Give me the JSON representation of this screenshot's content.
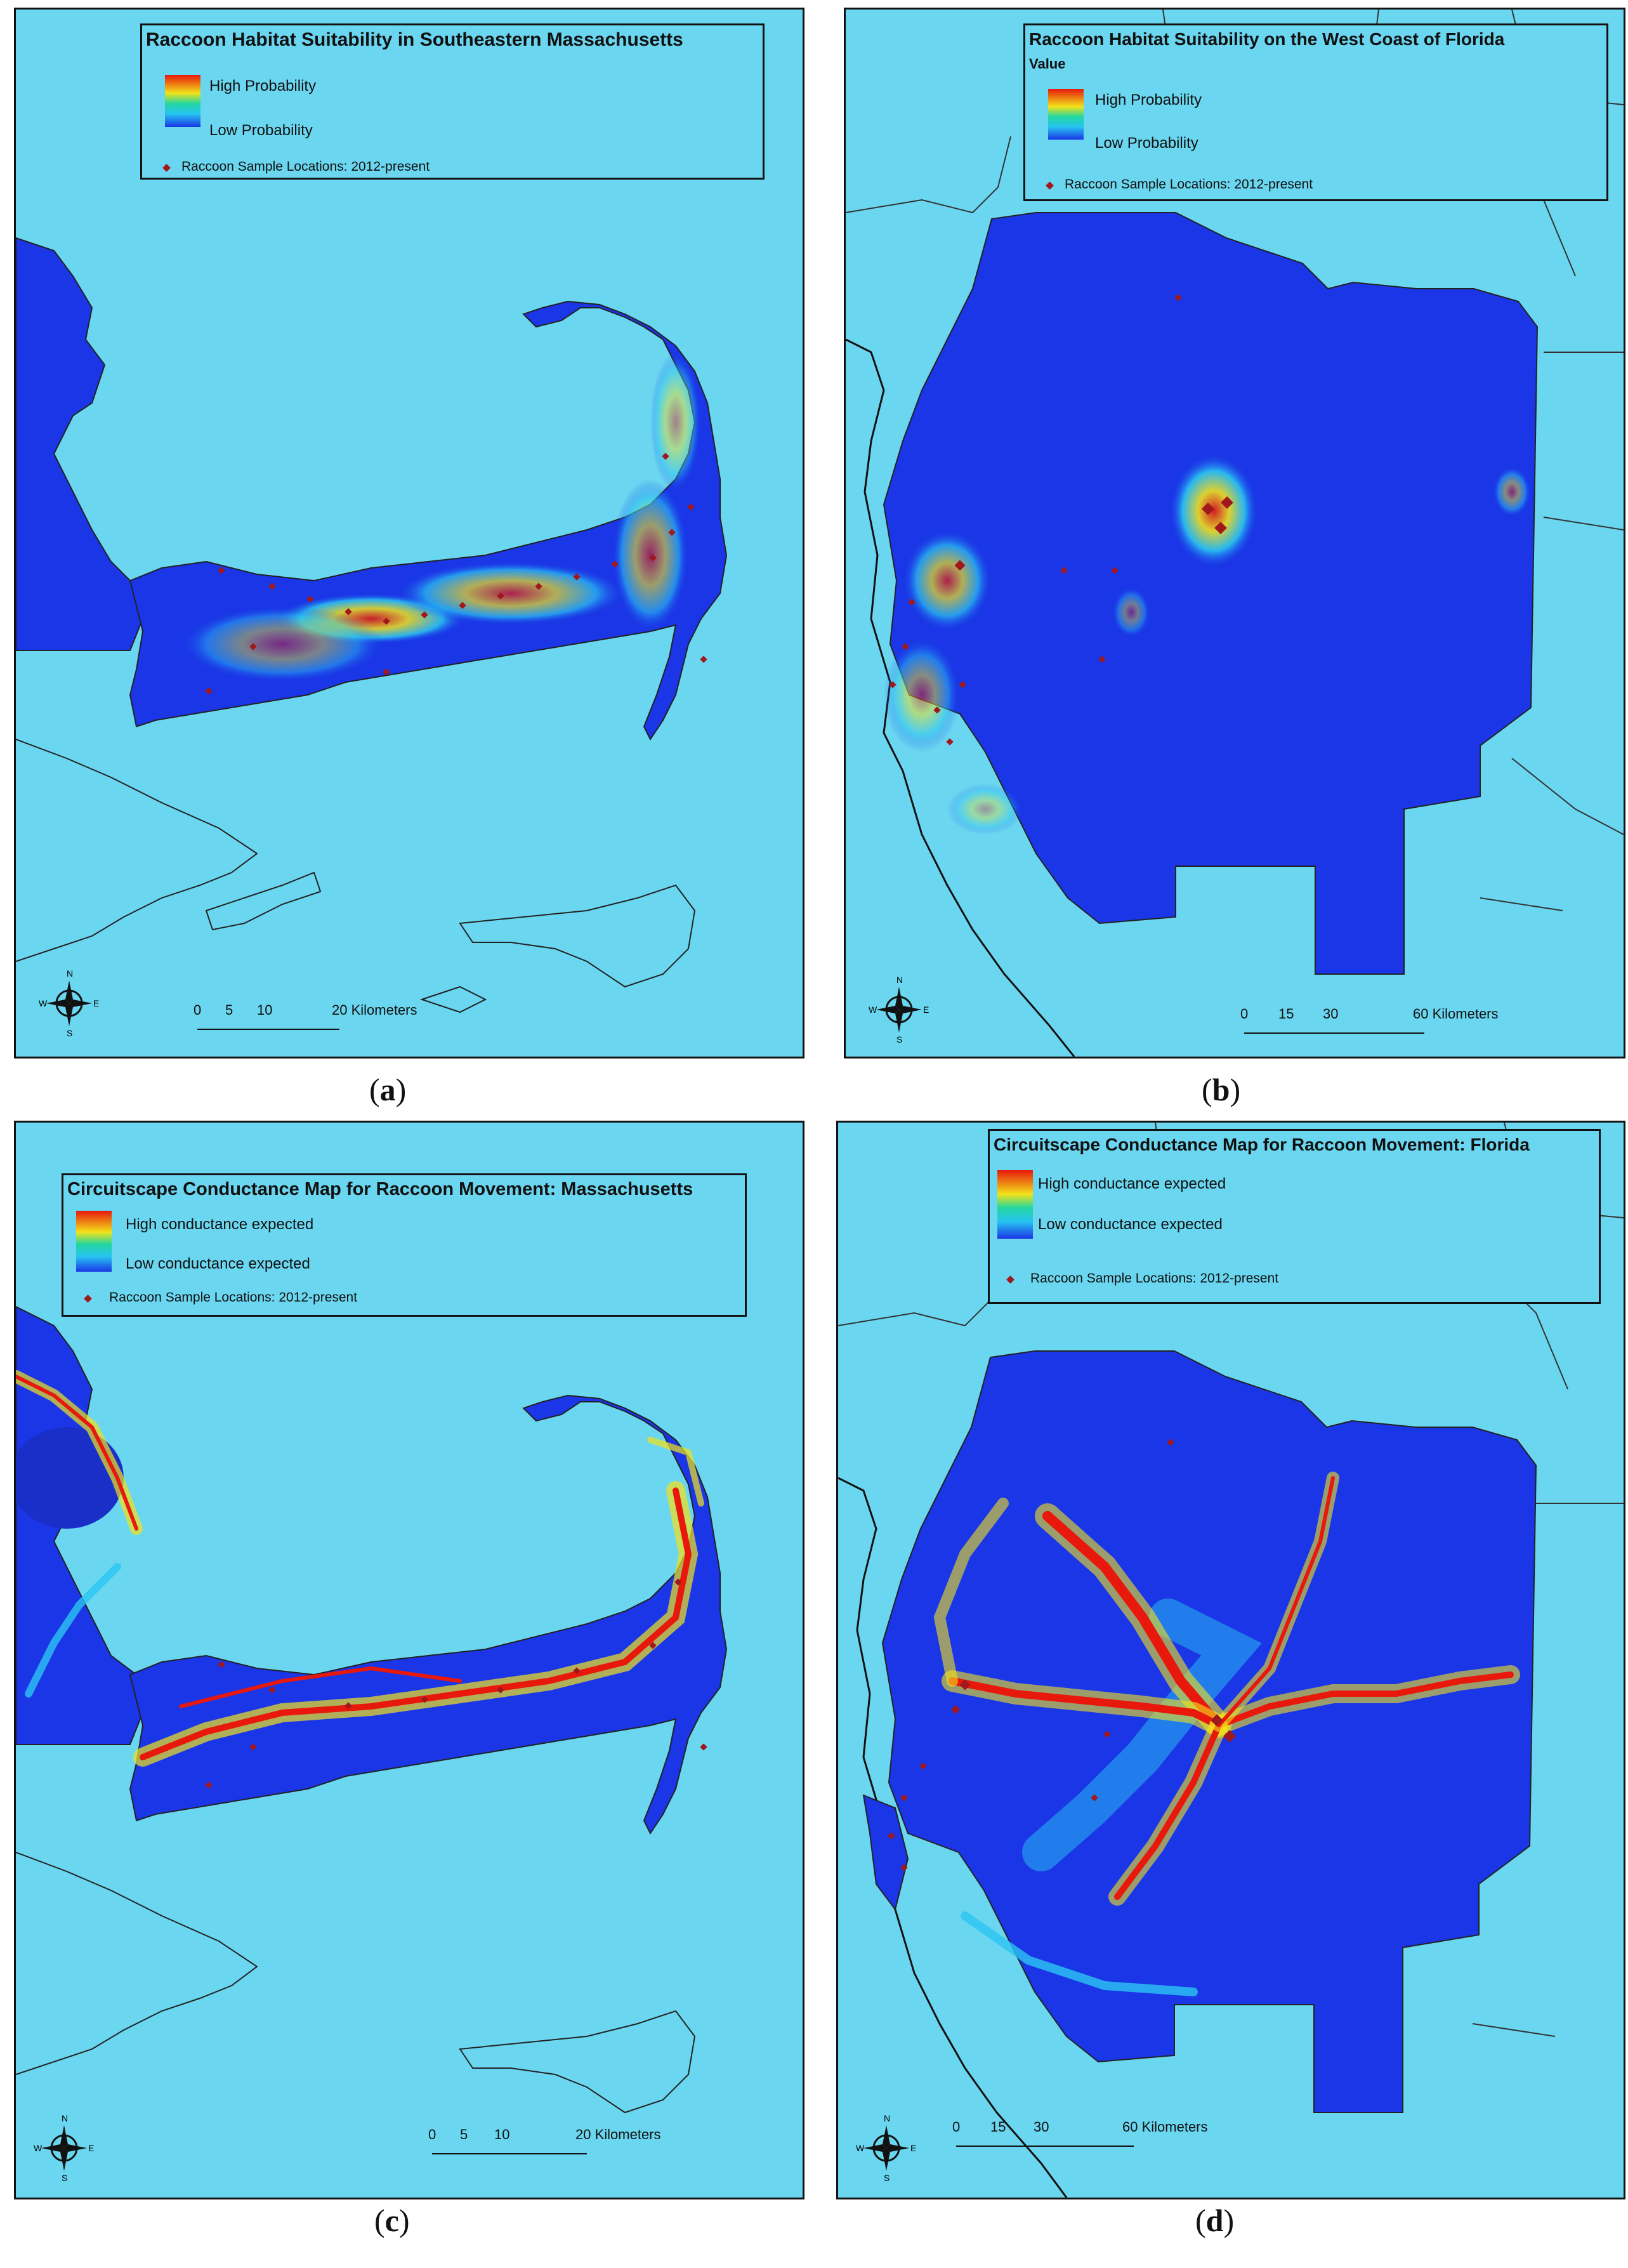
{
  "colors": {
    "ocean": "#6ad6f0",
    "low": "#1a36e6",
    "mid": "#27c4f2",
    "high": "#e8180c",
    "sample_point": "#a0181c"
  },
  "panels": [
    {
      "id": "a",
      "caption_letter": "a",
      "legend_title": "Raccoon Habitat Suitability in Southeastern Massachusetts",
      "value_label": "",
      "high_label": "High Probability",
      "low_label": "Low Probability",
      "points_label": "Raccoon Sample Locations: 2012-present",
      "scale_ticks": [
        "0",
        "5",
        "10",
        "20 Kilometers"
      ],
      "compass_letters": {
        "n": "N",
        "s": "S",
        "e": "E",
        "w": "W"
      }
    },
    {
      "id": "b",
      "caption_letter": "b",
      "legend_title": "Raccoon Habitat Suitability on the West Coast of Florida",
      "value_label": "Value",
      "high_label": "High Probability",
      "low_label": "Low Probability",
      "points_label": "Raccoon Sample Locations: 2012-present",
      "scale_ticks": [
        "0",
        "15",
        "30",
        "60 Kilometers"
      ],
      "compass_letters": {
        "n": "N",
        "s": "S",
        "e": "E",
        "w": "W"
      }
    },
    {
      "id": "c",
      "caption_letter": "c",
      "legend_title": "Circuitscape Conductance Map for Raccoon Movement: Massachusetts",
      "value_label": "",
      "high_label": "High conductance expected",
      "low_label": "Low conductance expected",
      "points_label": "Raccoon Sample Locations: 2012-present",
      "scale_ticks": [
        "0",
        "5",
        "10",
        "20 Kilometers"
      ],
      "compass_letters": {
        "n": "N",
        "s": "S",
        "e": "E",
        "w": "W"
      }
    },
    {
      "id": "d",
      "caption_letter": "d",
      "legend_title": "Circuitscape Conductance Map for Raccoon Movement: Florida",
      "value_label": "",
      "high_label": "High conductance expected",
      "low_label": "Low conductance expected",
      "points_label": "Raccoon Sample Locations: 2012-present",
      "scale_ticks": [
        "0",
        "15",
        "30",
        "60 Kilometers"
      ],
      "compass_letters": {
        "n": "N",
        "s": "S",
        "e": "E",
        "w": "W"
      }
    }
  ]
}
